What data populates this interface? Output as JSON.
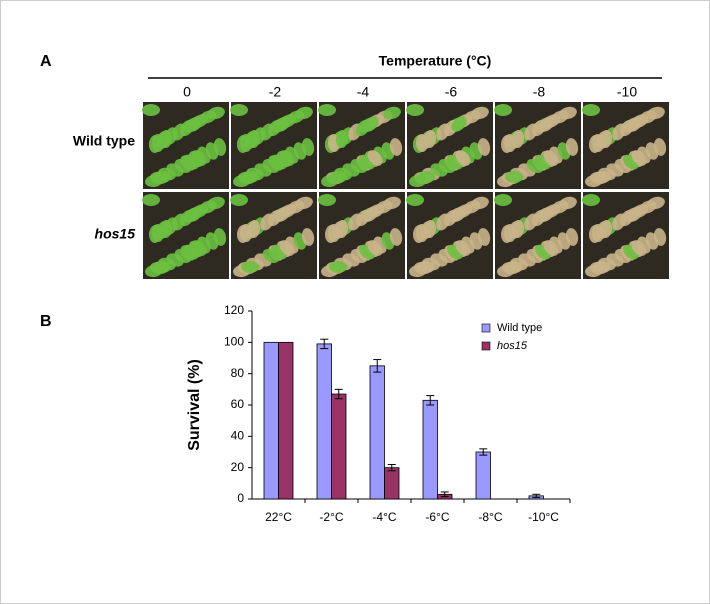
{
  "panel_labels": [
    "A",
    "B"
  ],
  "panel_a": {
    "axis_title": "Temperature (°C)",
    "columns": [
      "0",
      "-2",
      "-4",
      "-6",
      "-8",
      "-10"
    ],
    "rows": [
      "Wild type",
      "hos15"
    ]
  },
  "chart_data": {
    "type": "bar",
    "categories": [
      "22°C",
      "-2°C",
      "-4°C",
      "-6°C",
      "-8°C",
      "-10°C"
    ],
    "series": [
      {
        "name": "Wild type",
        "color": "#9999ff",
        "values": [
          100,
          99,
          85,
          63,
          30,
          2
        ],
        "errors": [
          null,
          3,
          4,
          3,
          2,
          1
        ]
      },
      {
        "name": "hos15",
        "color": "#993366",
        "values": [
          100,
          67,
          20,
          3,
          0,
          0
        ],
        "errors": [
          null,
          3,
          2,
          1.5,
          null,
          null
        ]
      }
    ],
    "ylabel": "Survival (%)",
    "ylim": [
      0,
      120
    ],
    "yticks": [
      0,
      20,
      40,
      60,
      80,
      100,
      120
    ],
    "legend": "upper right"
  }
}
